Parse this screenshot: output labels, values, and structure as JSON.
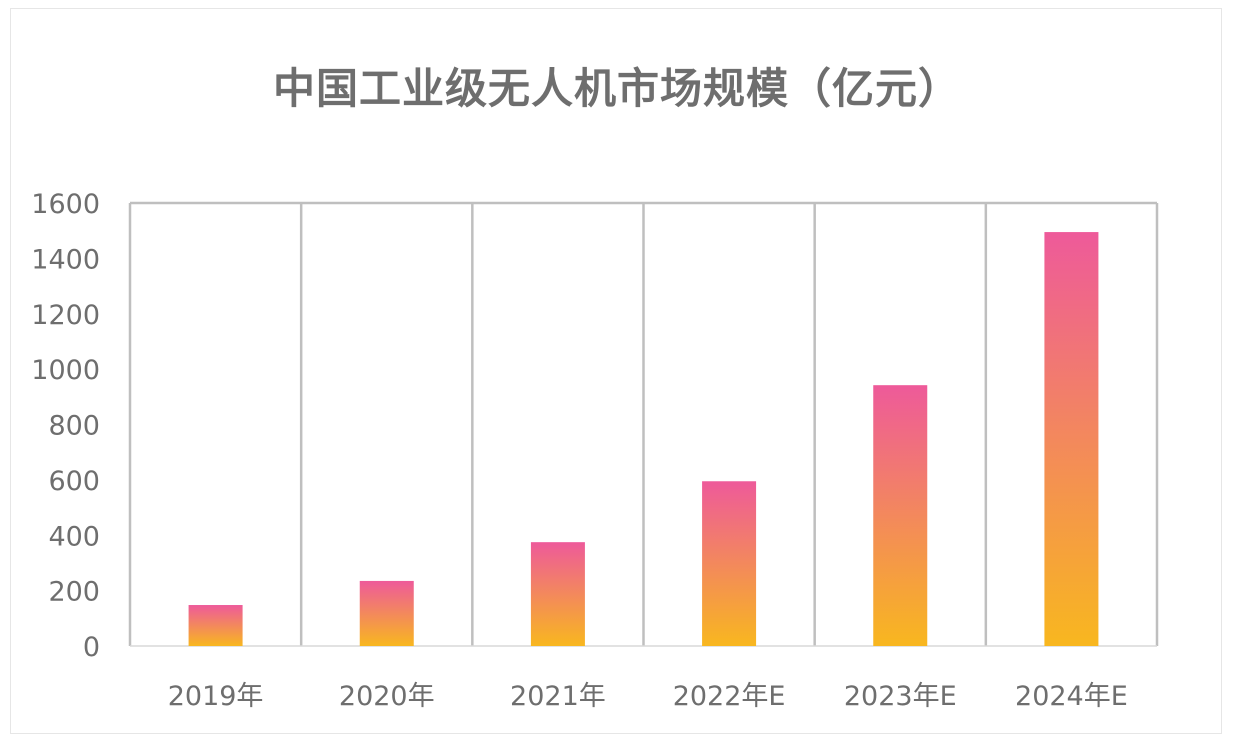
{
  "chart_data": {
    "type": "bar",
    "title": "中国工业级无人机市场规模（亿元）",
    "xlabel": "",
    "ylabel": "",
    "categories": [
      "2019年",
      "2020年",
      "2021年",
      "2022年E",
      "2023年E",
      "2024年E"
    ],
    "values": [
      148,
      235,
      375,
      595,
      942,
      1495
    ],
    "ylim": [
      0,
      1600
    ],
    "yticks": [
      0,
      200,
      400,
      600,
      800,
      1000,
      1200,
      1400,
      1600
    ],
    "grid": "vertical",
    "legend": "none",
    "colors": {
      "bar_top": "#ee5a9a",
      "bar_bottom": "#f8b71f",
      "grid": "#bfbfbf",
      "text": "#6e6e6e"
    }
  }
}
